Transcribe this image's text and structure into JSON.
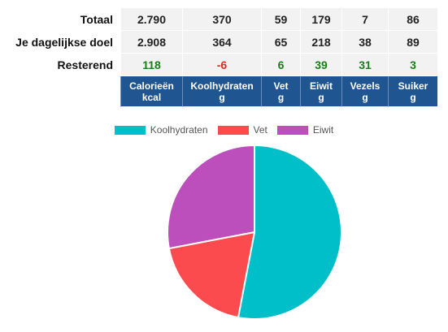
{
  "rows": [
    {
      "label": "Totaal",
      "values": [
        "2.790",
        "370",
        "59",
        "179",
        "7",
        "86"
      ]
    },
    {
      "label": "Je dagelijkse doel",
      "values": [
        "2.908",
        "364",
        "65",
        "218",
        "38",
        "89"
      ]
    },
    {
      "label": "Resterend",
      "values": [
        "118",
        "-6",
        "6",
        "39",
        "31",
        "3"
      ]
    }
  ],
  "headers": [
    {
      "name": "Calorieën",
      "unit": "kcal"
    },
    {
      "name": "Koolhydraten",
      "unit": "g"
    },
    {
      "name": "Vet",
      "unit": "g"
    },
    {
      "name": "Eiwit",
      "unit": "g"
    },
    {
      "name": "Vezels",
      "unit": "g"
    },
    {
      "name": "Suiker",
      "unit": "g"
    }
  ],
  "colors": {
    "positive": "#1a7d1a",
    "negative": "#e02b20",
    "header_bg": "#1f5591"
  },
  "chart_data": {
    "type": "pie",
    "categories": [
      "Koolhydraten",
      "Vet",
      "Eiwit"
    ],
    "values": [
      53,
      19,
      28
    ],
    "colors": [
      "#00bfc8",
      "#fb4b4f",
      "#bd4fbd"
    ],
    "legend_position": "top"
  }
}
